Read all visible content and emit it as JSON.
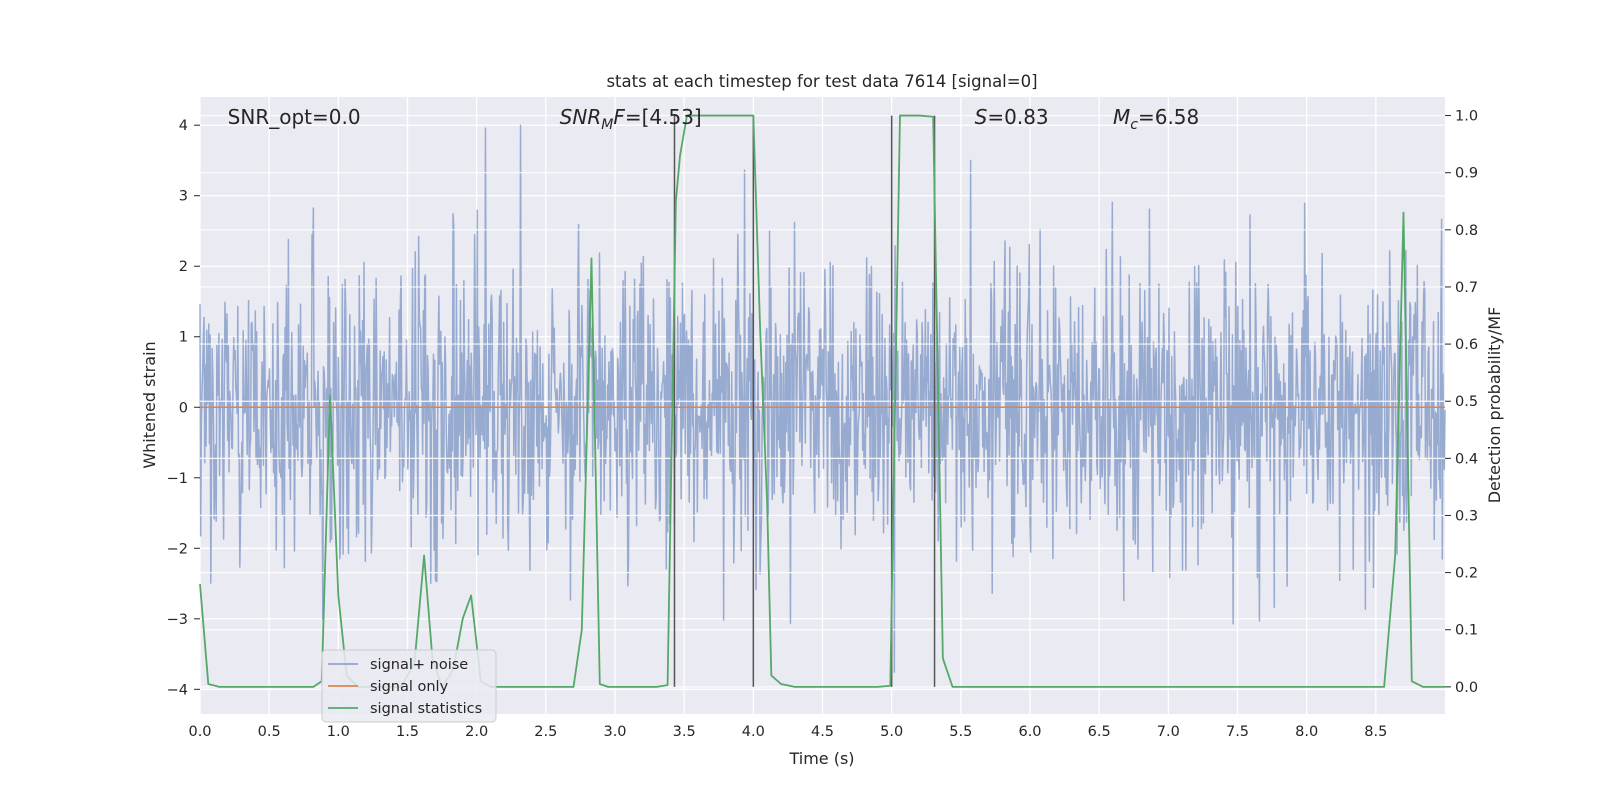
{
  "chart_data": {
    "type": "line",
    "title": "stats at each timestep for test data 7614 [signal=0]",
    "xlabel": "Time (s)",
    "ylabel": "Whitened strain",
    "y2label": "Detection probability/MF",
    "xlim": [
      0.0,
      9.0
    ],
    "ylim": [
      -4.35,
      4.4
    ],
    "y2lim": [
      -0.0475,
      1.0325
    ],
    "x_ticks": [
      "0.0",
      "0.5",
      "1.0",
      "1.5",
      "2.0",
      "2.5",
      "3.0",
      "3.5",
      "4.0",
      "4.5",
      "5.0",
      "5.5",
      "6.0",
      "6.5",
      "7.0",
      "7.5",
      "8.0",
      "8.5"
    ],
    "y_ticks": [
      "4",
      "3",
      "2",
      "1",
      "0",
      "−1",
      "−2",
      "−3",
      "−4"
    ],
    "y2_ticks": [
      "1.0",
      "0.9",
      "0.8",
      "0.7",
      "0.6",
      "0.5",
      "0.4",
      "0.3",
      "0.2",
      "0.1",
      "0.0"
    ],
    "grid": true,
    "legend_position": "lower-left",
    "annotations": [
      {
        "x": 0.2,
        "text": "SNR_opt=0.0",
        "italic_prefix": ""
      },
      {
        "x": 2.6,
        "text": "SNR",
        "sub": "M",
        "italic_tail": "F",
        "value": "=[4.53]"
      },
      {
        "x": 5.6,
        "text": "S",
        "value": "=0.83"
      },
      {
        "x": 6.6,
        "text": "M",
        "sub": "c",
        "value": "=6.58"
      }
    ],
    "vertical_lines": [
      3.43,
      4.0,
      5.0,
      5.31
    ],
    "series": [
      {
        "name": "signal+ noise",
        "color": "#8ea3cc",
        "axis": "left",
        "kind": "noise",
        "sigma": 1.0,
        "clip": [
          -3.97,
          4.0
        ],
        "sample_rate": 205
      },
      {
        "name": "signal only",
        "color": "#dd8452",
        "axis": "left",
        "x": [
          0.0,
          9.0
        ],
        "y": [
          0.0,
          0.0
        ]
      },
      {
        "name": "signal statistics",
        "color": "#55a868",
        "axis": "right",
        "x": [
          0.0,
          0.06,
          0.14,
          0.3,
          0.5,
          0.7,
          0.82,
          0.88,
          0.94,
          1.0,
          1.06,
          1.14,
          1.3,
          1.45,
          1.55,
          1.62,
          1.68,
          1.75,
          1.83,
          1.9,
          1.96,
          2.03,
          2.1,
          2.3,
          2.5,
          2.7,
          2.76,
          2.83,
          2.89,
          2.95,
          3.1,
          3.3,
          3.38,
          3.44,
          3.47,
          3.52,
          3.7,
          3.9,
          4.0,
          4.05,
          4.1,
          4.13,
          4.2,
          4.3,
          4.5,
          4.7,
          4.9,
          4.99,
          5.06,
          5.1,
          5.2,
          5.3,
          5.37,
          5.44,
          5.6,
          6.0,
          6.5,
          7.0,
          7.5,
          8.0,
          8.4,
          8.56,
          8.64,
          8.7,
          8.76,
          8.84,
          8.9,
          9.0
        ],
        "y": [
          0.18,
          0.005,
          0.0,
          0.0,
          0.0,
          0.0,
          0.0,
          0.01,
          0.51,
          0.16,
          0.02,
          0.0,
          0.0,
          0.0,
          0.04,
          0.23,
          0.05,
          0.0,
          0.03,
          0.12,
          0.16,
          0.01,
          0.0,
          0.0,
          0.0,
          0.0,
          0.1,
          0.75,
          0.005,
          0.0,
          0.0,
          0.0,
          0.003,
          0.85,
          0.93,
          1.0,
          1.0,
          1.0,
          1.0,
          0.62,
          0.32,
          0.02,
          0.005,
          0.0,
          0.0,
          0.0,
          0.0,
          0.002,
          1.0,
          1.0,
          1.0,
          0.998,
          0.05,
          0.0,
          0.0,
          0.0,
          0.0,
          0.0,
          0.0,
          0.0,
          0.0,
          0.0,
          0.23,
          0.83,
          0.01,
          0.0,
          0.0,
          0.0
        ]
      }
    ]
  }
}
